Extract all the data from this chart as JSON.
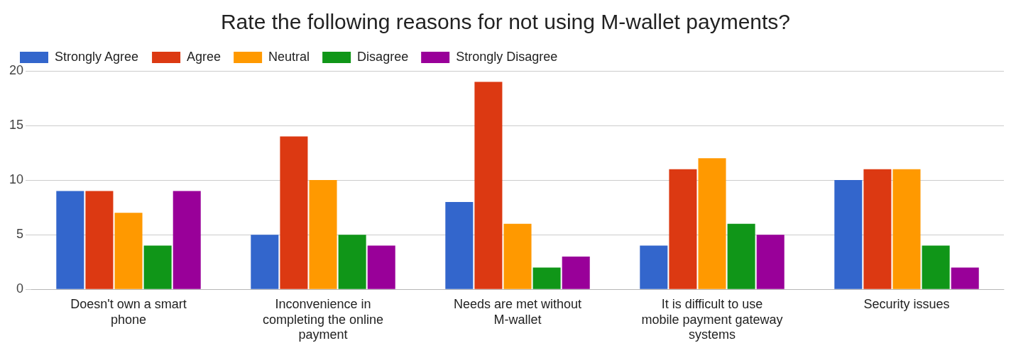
{
  "chart_data": {
    "type": "bar",
    "title": "Rate the following reasons for not using M-wallet payments?",
    "categories": [
      "Doesn't own a smart phone",
      "Inconvenience in completing the online payment",
      "Needs are met without M-wallet",
      "It is difficult to use mobile payment gateway systems",
      "Security issues"
    ],
    "series": [
      {
        "name": "Strongly Agree",
        "color": "#3366cc",
        "values": [
          9,
          5,
          8,
          4,
          10
        ]
      },
      {
        "name": "Agree",
        "color": "#dc3912",
        "values": [
          9,
          14,
          19,
          11,
          11
        ]
      },
      {
        "name": "Neutral",
        "color": "#ff9900",
        "values": [
          7,
          10,
          6,
          12,
          11
        ]
      },
      {
        "name": "Disagree",
        "color": "#109618",
        "values": [
          4,
          5,
          2,
          6,
          4
        ]
      },
      {
        "name": "Strongly Disagree",
        "color": "#990099",
        "values": [
          9,
          4,
          3,
          5,
          2
        ]
      }
    ],
    "ylim": [
      0,
      20
    ],
    "yticks": [
      0,
      5,
      10,
      15,
      20
    ],
    "grid": "y",
    "legend": "top left"
  }
}
